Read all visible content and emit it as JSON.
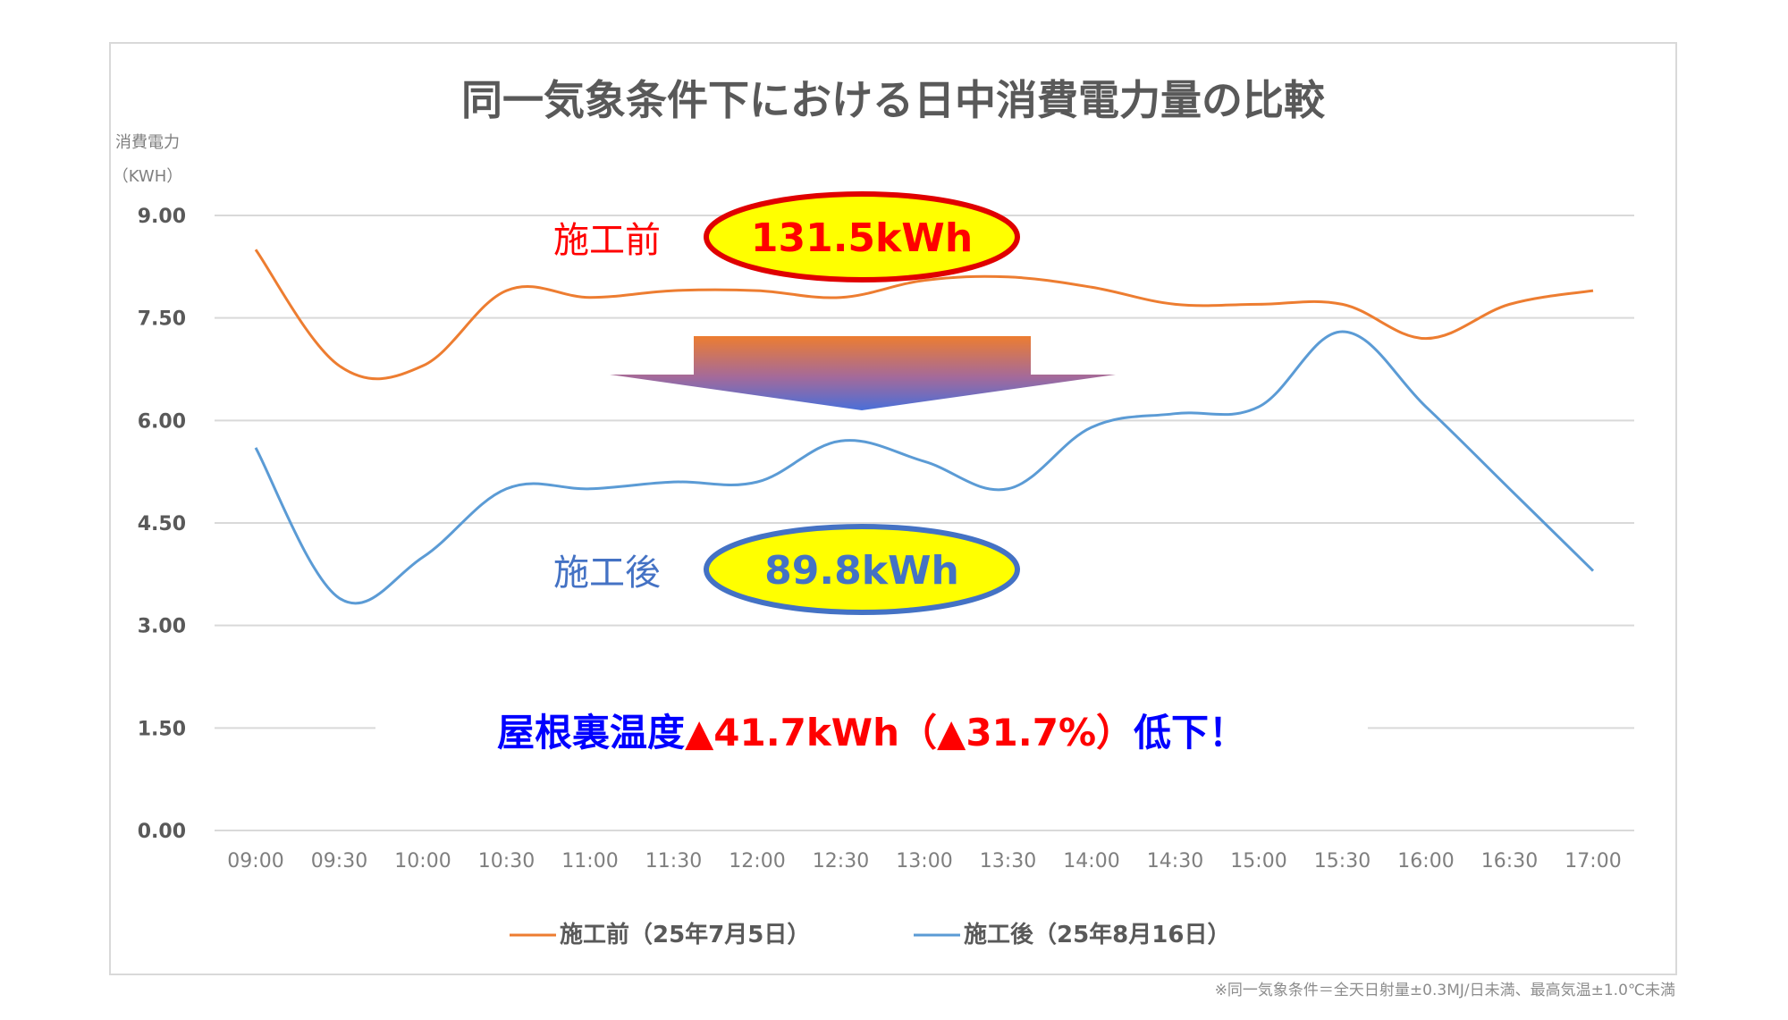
{
  "chart_data": {
    "type": "line",
    "title": "同一気象条件下における日中消費電力量の比較",
    "ylabel_line1": "消費電力",
    "ylabel_line2": "（KWH）",
    "ylim": [
      0,
      9
    ],
    "yticks": [
      "0.00",
      "1.50",
      "3.00",
      "4.50",
      "6.00",
      "7.50",
      "9.00"
    ],
    "ytick_values": [
      0,
      1.5,
      3,
      4.5,
      6,
      7.5,
      9
    ],
    "categories": [
      "09:00",
      "09:30",
      "10:00",
      "10:30",
      "11:00",
      "11:30",
      "12:00",
      "12:30",
      "13:00",
      "13:30",
      "14:00",
      "14:30",
      "15:00",
      "15:30",
      "16:00",
      "16:30",
      "17:00"
    ],
    "grid": true,
    "legend_position": "bottom",
    "series": [
      {
        "name": "施工前（25年7月5日）",
        "color": "#ed7d31",
        "values": [
          8.5,
          6.8,
          6.8,
          7.9,
          7.8,
          7.9,
          7.9,
          7.8,
          8.05,
          8.1,
          7.95,
          7.7,
          7.7,
          7.7,
          7.2,
          7.7,
          7.9
        ]
      },
      {
        "name": "施工後（25年8月16日）",
        "color": "#5b9bd5",
        "values": [
          5.6,
          3.4,
          4.0,
          5.0,
          5.0,
          5.1,
          5.1,
          5.7,
          5.4,
          5.0,
          5.9,
          6.1,
          6.2,
          7.3,
          6.2,
          5.0,
          3.8
        ]
      }
    ],
    "annotations": {
      "before_label": "施工前",
      "before_value": "131.5kWh",
      "after_label": "施工後",
      "after_value": "89.8kWh",
      "summary_part1": "屋根裏温度",
      "summary_part2": "▲41.7kWh（▲31.7%）",
      "summary_part3": "低下！"
    }
  },
  "footnote": "※同一気象条件＝全天日射量±0.3MJ/日未満、最高気温±1.0℃未満",
  "colors": {
    "before_text": "#ff0000",
    "after_text": "#4472c4",
    "summary_blue": "#0000ff",
    "ellipse_fill": "#ffff00",
    "ellipse_before_stroke": "#e00000",
    "ellipse_after_stroke": "#4472c4"
  }
}
